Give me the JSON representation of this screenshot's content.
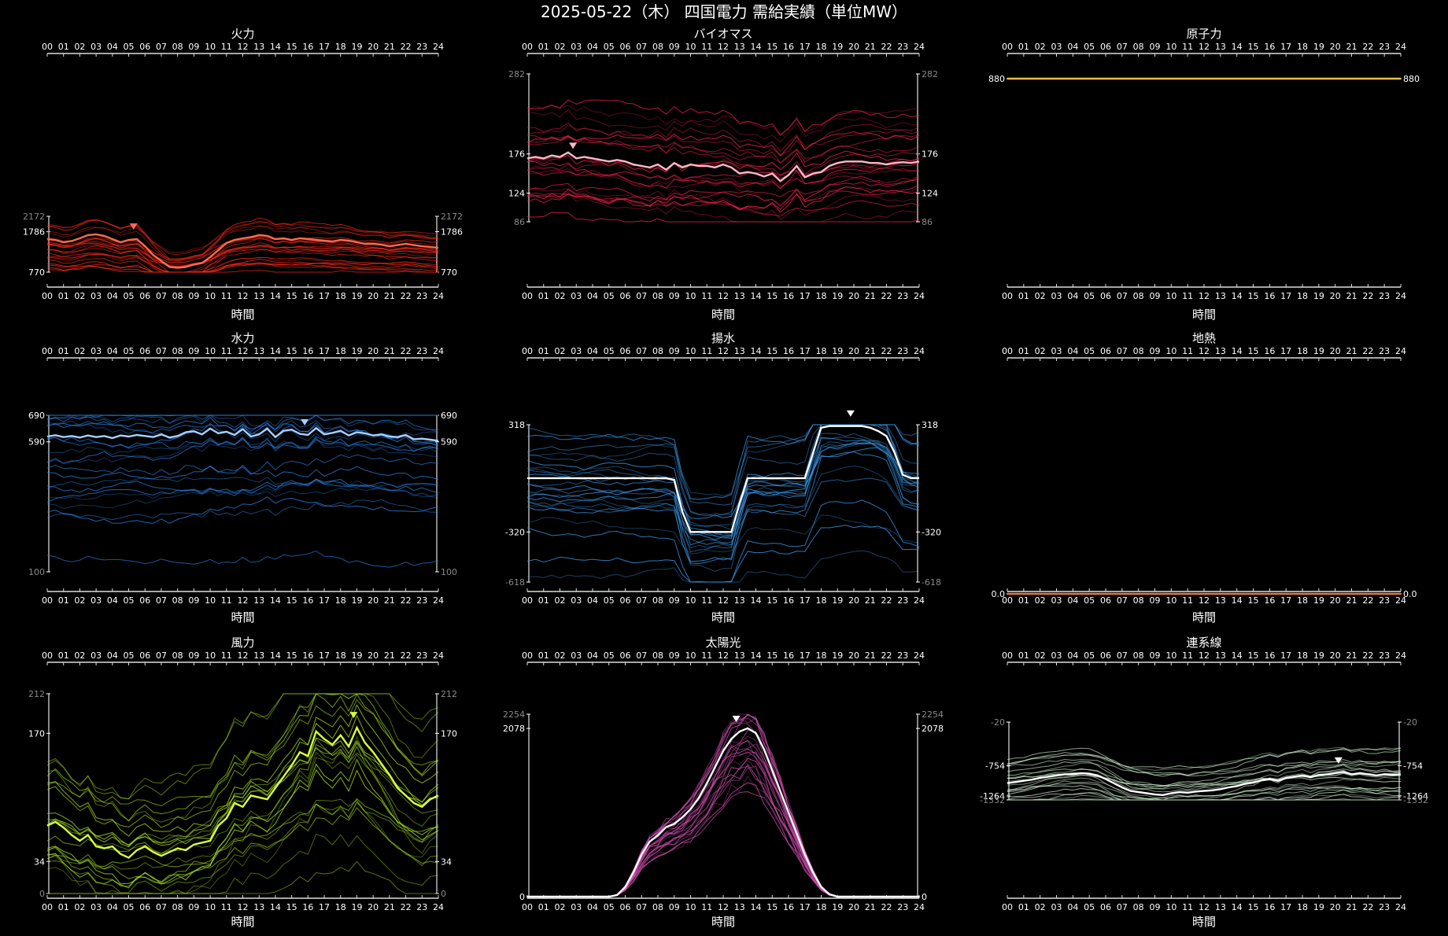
{
  "title": "2025-05-22（木） 四国電力 需給実績（単位MW）",
  "hour_ticks": [
    "00",
    "01",
    "02",
    "03",
    "04",
    "05",
    "06",
    "07",
    "08",
    "09",
    "10",
    "11",
    "12",
    "13",
    "14",
    "15",
    "16",
    "17",
    "18",
    "19",
    "20",
    "21",
    "22",
    "23",
    "24"
  ],
  "colors": {
    "thermal": "#ff2a1a",
    "biomass": "#f0204a",
    "nuclear": "#e8c040",
    "hydro": "#2a7fe0",
    "pumped": "#3a98e8",
    "geothermal": "#e07a30",
    "wind": "#a8e020",
    "solar": "#d050b0",
    "interconnect": "#c8e8c8"
  },
  "chart_data": [
    {
      "type": "line",
      "key": "thermal",
      "title": "火力",
      "xlabel": "時間",
      "ylim": [
        770,
        2172
      ],
      "ticks_right": [
        {
          "v": 2172,
          "label": "2172",
          "dim": true
        },
        {
          "v": 1786,
          "label": "1786"
        },
        {
          "v": 770,
          "label": "770"
        }
      ],
      "ticks_left": [
        {
          "v": 2172,
          "label": "2172",
          "dim": true
        },
        {
          "v": 1786,
          "label": "1786"
        },
        {
          "v": 770,
          "label": "770"
        }
      ],
      "show_xlabel": true,
      "marker_hour": 5.3,
      "highlight": [
        1600,
        1580,
        1520,
        1550,
        1620,
        1700,
        1720,
        1680,
        1600,
        1520,
        1580,
        1600,
        1420,
        1200,
        1050,
        900,
        880,
        900,
        960,
        1000,
        1150,
        1320,
        1500,
        1580,
        1620,
        1650,
        1700,
        1680,
        1600,
        1620,
        1580,
        1620,
        1600,
        1580,
        1560,
        1540,
        1580,
        1560,
        1520,
        1480,
        1480,
        1460,
        1420,
        1450,
        1480,
        1450,
        1420,
        1400,
        1380
      ]
    },
    {
      "type": "line",
      "key": "biomass",
      "title": "バイオマス",
      "xlabel": "時間",
      "ylim": [
        86,
        282
      ],
      "ticks_left": [
        {
          "v": 282,
          "label": "282",
          "dim": true
        },
        {
          "v": 176,
          "label": "176"
        },
        {
          "v": 124,
          "label": "124"
        },
        {
          "v": 86,
          "label": "86",
          "dim": true
        }
      ],
      "ticks_right": [
        {
          "v": 282,
          "label": "282",
          "dim": true
        },
        {
          "v": 176,
          "label": "176"
        },
        {
          "v": 124,
          "label": "124"
        },
        {
          "v": 86,
          "label": "86",
          "dim": true
        }
      ],
      "show_xlabel": true,
      "marker_hour": 2.8,
      "highlight": [
        170,
        172,
        170,
        174,
        172,
        178,
        170,
        172,
        170,
        168,
        166,
        168,
        166,
        162,
        160,
        158,
        162,
        155,
        164,
        158,
        162,
        160,
        160,
        158,
        162,
        158,
        150,
        152,
        150,
        146,
        150,
        140,
        148,
        160,
        145,
        150,
        152,
        160,
        164,
        166,
        166,
        166,
        164,
        164,
        162,
        164,
        165,
        164,
        166
      ]
    },
    {
      "type": "line",
      "key": "nuclear",
      "title": "原子力",
      "xlabel": "時間",
      "ylim": [
        0,
        900
      ],
      "ticks_left": [
        {
          "v": 880,
          "label": "880"
        }
      ],
      "ticks_right": [
        {
          "v": 880,
          "label": "880"
        }
      ],
      "show_xlabel": true,
      "marker_hour": null,
      "highlight": [
        880,
        880,
        880,
        880,
        880,
        880,
        880,
        880,
        880,
        880,
        880,
        880,
        880,
        880,
        880,
        880,
        880,
        880,
        880,
        880,
        880,
        880,
        880,
        880,
        880,
        880,
        880,
        880,
        880,
        880,
        880,
        880,
        880,
        880,
        880,
        880,
        880,
        880,
        880,
        880,
        880,
        880,
        880,
        880,
        880,
        880,
        880,
        880,
        880
      ]
    },
    {
      "type": "line",
      "key": "hydro",
      "title": "水力",
      "xlabel": "時間",
      "ylim": [
        100,
        690
      ],
      "ticks_left": [
        {
          "v": 690,
          "label": "690"
        },
        {
          "v": 590,
          "label": "590"
        },
        {
          "v": 100,
          "label": "100",
          "dim": true
        }
      ],
      "ticks_right": [
        {
          "v": 690,
          "label": "690"
        },
        {
          "v": 590,
          "label": "590"
        },
        {
          "v": 100,
          "label": "100",
          "dim": true
        }
      ],
      "show_xlabel": true,
      "marker_hour": 15.8,
      "highlight": [
        610,
        615,
        608,
        612,
        606,
        614,
        608,
        612,
        604,
        614,
        610,
        616,
        612,
        608,
        618,
        606,
        612,
        626,
        630,
        618,
        640,
        622,
        628,
        616,
        638,
        610,
        618,
        640,
        608,
        632,
        636,
        620,
        616,
        642,
        618,
        624,
        632,
        614,
        626,
        622,
        614,
        618,
        610,
        608,
        616,
        600,
        602,
        598,
        594
      ]
    },
    {
      "type": "line",
      "key": "pumped",
      "title": "揚水",
      "xlabel": "時間",
      "ylim": [
        -618,
        318
      ],
      "ticks_left": [
        {
          "v": 318,
          "label": "318"
        },
        {
          "v": -320,
          "label": "-320"
        },
        {
          "v": -618,
          "label": "-618",
          "dim": true
        }
      ],
      "ticks_right": [
        {
          "v": 318,
          "label": "318"
        },
        {
          "v": -320,
          "label": "-320"
        },
        {
          "v": -618,
          "label": "-618",
          "dim": true
        }
      ],
      "show_xlabel": true,
      "marker_hour": 19.8,
      "highlight": [
        0,
        0,
        0,
        0,
        0,
        0,
        0,
        0,
        0,
        0,
        0,
        0,
        0,
        0,
        0,
        0,
        0,
        0,
        -10,
        -200,
        -320,
        -320,
        -320,
        -320,
        -320,
        -320,
        -150,
        0,
        0,
        0,
        0,
        0,
        0,
        0,
        0,
        150,
        300,
        310,
        310,
        310,
        310,
        310,
        300,
        280,
        250,
        150,
        20,
        0,
        0
      ]
    },
    {
      "type": "line",
      "key": "geothermal",
      "title": "地熱",
      "xlabel": "時間",
      "ylim": [
        0,
        1
      ],
      "ticks_left": [
        {
          "v": 0,
          "label": "0.0"
        }
      ],
      "ticks_right": [
        {
          "v": 0,
          "label": "0.0"
        }
      ],
      "show_xlabel": true,
      "marker_hour": null,
      "highlight": [
        0,
        0,
        0,
        0,
        0,
        0,
        0,
        0,
        0,
        0,
        0,
        0,
        0,
        0,
        0,
        0,
        0,
        0,
        0,
        0,
        0,
        0,
        0,
        0,
        0,
        0,
        0,
        0,
        0,
        0,
        0,
        0,
        0,
        0,
        0,
        0,
        0,
        0,
        0,
        0,
        0,
        0,
        0,
        0,
        0,
        0,
        0,
        0,
        0
      ]
    },
    {
      "type": "line",
      "key": "wind",
      "title": "風力",
      "xlabel": "時間",
      "ylim": [
        0,
        212
      ],
      "ticks_left": [
        {
          "v": 212,
          "label": "212",
          "dim": true
        },
        {
          "v": 170,
          "label": "170"
        },
        {
          "v": 34,
          "label": "34"
        },
        {
          "v": 0,
          "label": "0",
          "dim": true
        }
      ],
      "ticks_right": [
        {
          "v": 212,
          "label": "212",
          "dim": true
        },
        {
          "v": 170,
          "label": "170"
        },
        {
          "v": 34,
          "label": "34"
        },
        {
          "v": 0,
          "label": "0",
          "dim": true
        }
      ],
      "show_xlabel": true,
      "marker_hour": 18.8,
      "highlight": [
        72,
        76,
        70,
        62,
        56,
        62,
        50,
        48,
        50,
        42,
        38,
        46,
        50,
        44,
        40,
        44,
        48,
        46,
        52,
        54,
        56,
        72,
        80,
        96,
        92,
        104,
        102,
        100,
        112,
        124,
        136,
        150,
        146,
        172,
        164,
        158,
        168,
        156,
        176,
        160,
        150,
        138,
        126,
        112,
        104,
        96,
        92,
        100,
        104
      ]
    },
    {
      "type": "line",
      "key": "solar",
      "title": "太陽光",
      "xlabel": "時間",
      "ylim": [
        0,
        2254
      ],
      "ticks_left": [
        {
          "v": 2254,
          "label": "2254",
          "dim": true
        },
        {
          "v": 2078,
          "label": "2078"
        },
        {
          "v": 0,
          "label": "0"
        }
      ],
      "ticks_right": [
        {
          "v": 2254,
          "label": "2254",
          "dim": true
        },
        {
          "v": 2078,
          "label": "2078"
        },
        {
          "v": 0,
          "label": "0"
        }
      ],
      "show_xlabel": true,
      "marker_hour": 12.8,
      "highlight": [
        0,
        0,
        0,
        0,
        0,
        0,
        0,
        0,
        0,
        0,
        0,
        20,
        120,
        300,
        520,
        680,
        760,
        860,
        900,
        980,
        1080,
        1220,
        1400,
        1600,
        1800,
        1950,
        2040,
        2080,
        2020,
        1820,
        1560,
        1300,
        1040,
        780,
        520,
        300,
        120,
        30,
        0,
        0,
        0,
        0,
        0,
        0,
        0,
        0,
        0,
        0,
        0
      ]
    },
    {
      "type": "line",
      "key": "interconnect",
      "title": "連系線",
      "xlabel": "時間",
      "ylim": [
        -1332,
        -20
      ],
      "ticks_left": [
        {
          "v": -20,
          "label": "-20",
          "dim": true
        },
        {
          "v": -754,
          "label": "-754"
        },
        {
          "v": -1264,
          "label": "-1264"
        },
        {
          "v": -1332,
          "label": "-1332",
          "dim": true
        }
      ],
      "ticks_right": [
        {
          "v": -20,
          "label": "-20",
          "dim": true
        },
        {
          "v": -754,
          "label": "-754"
        },
        {
          "v": -1264,
          "label": "-1264"
        },
        {
          "v": -1332,
          "label": "-1332",
          "dim": true
        }
      ],
      "show_xlabel": true,
      "marker_hour": 20.2,
      "highlight": [
        -1050,
        -1030,
        -1010,
        -990,
        -960,
        -940,
        -920,
        -900,
        -900,
        -880,
        -890,
        -920,
        -980,
        -1050,
        -1120,
        -1180,
        -1200,
        -1220,
        -1240,
        -1250,
        -1220,
        -1200,
        -1210,
        -1190,
        -1180,
        -1170,
        -1150,
        -1120,
        -1100,
        -1060,
        -1040,
        -1000,
        -980,
        -1010,
        -960,
        -940,
        -920,
        -950,
        -910,
        -900,
        -880,
        -860,
        -900,
        -880,
        -900,
        -920,
        -900,
        -910,
        -900
      ]
    }
  ]
}
